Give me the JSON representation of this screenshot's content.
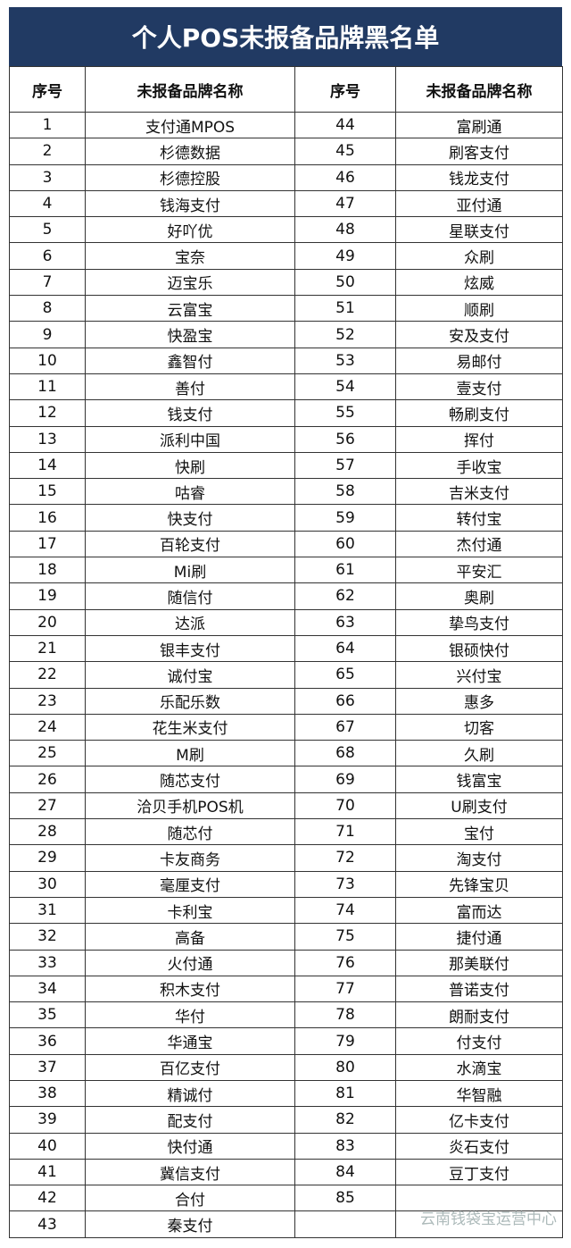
{
  "header": {
    "title": "个人POS未报备品牌黑名单"
  },
  "table": {
    "columns": [
      "序号",
      "未报备品牌名称",
      "序号",
      "未报备品牌名称"
    ],
    "rows": [
      [
        1,
        "支付通MPOS",
        44,
        "富刷通"
      ],
      [
        2,
        "杉德数据",
        45,
        "刷客支付"
      ],
      [
        3,
        "杉德控股",
        46,
        "钱龙支付"
      ],
      [
        4,
        "钱海支付",
        47,
        "亚付通"
      ],
      [
        5,
        "好吖优",
        48,
        "星联支付"
      ],
      [
        6,
        "宝奈",
        49,
        "众刷"
      ],
      [
        7,
        "迈宝乐",
        50,
        "炫威"
      ],
      [
        8,
        "云富宝",
        51,
        "顺刷"
      ],
      [
        9,
        "快盈宝",
        52,
        "安及支付"
      ],
      [
        10,
        "鑫智付",
        53,
        "易邮付"
      ],
      [
        11,
        "善付",
        54,
        "壹支付"
      ],
      [
        12,
        "钱支付",
        55,
        "畅刷支付"
      ],
      [
        13,
        "派利中国",
        56,
        "挥付"
      ],
      [
        14,
        "快刷",
        57,
        "手收宝"
      ],
      [
        15,
        "咕睿",
        58,
        "吉米支付"
      ],
      [
        16,
        "快支付",
        59,
        "转付宝"
      ],
      [
        17,
        "百轮支付",
        60,
        "杰付通"
      ],
      [
        18,
        "Mi刷",
        61,
        "平安汇"
      ],
      [
        19,
        "随信付",
        62,
        "奥刷"
      ],
      [
        20,
        "达派",
        63,
        "挚鸟支付"
      ],
      [
        21,
        "银丰支付",
        64,
        "银硕快付"
      ],
      [
        22,
        "诚付宝",
        65,
        "兴付宝"
      ],
      [
        23,
        "乐配乐数",
        66,
        "惠多"
      ],
      [
        24,
        "花生米支付",
        67,
        "切客"
      ],
      [
        25,
        "M刷",
        68,
        "久刷"
      ],
      [
        26,
        "随芯支付",
        69,
        "钱富宝"
      ],
      [
        27,
        "洽贝手机POS机",
        70,
        "U刷支付"
      ],
      [
        28,
        "随芯付",
        71,
        "宝付"
      ],
      [
        29,
        "卡友商务",
        72,
        "淘支付"
      ],
      [
        30,
        "毫厘支付",
        73,
        "先锋宝贝"
      ],
      [
        31,
        "卡利宝",
        74,
        "富而达"
      ],
      [
        32,
        "高备",
        75,
        "捷付通"
      ],
      [
        33,
        "火付通",
        76,
        "那美联付"
      ],
      [
        34,
        "积木支付",
        77,
        "普诺支付"
      ],
      [
        35,
        "华付",
        78,
        "朗耐支付"
      ],
      [
        36,
        "华通宝",
        79,
        "付支付"
      ],
      [
        37,
        "百亿支付",
        80,
        "水滴宝"
      ],
      [
        38,
        "精诚付",
        81,
        "华智融"
      ],
      [
        39,
        "配支付",
        82,
        "亿卡支付"
      ],
      [
        40,
        "快付通",
        83,
        "炎石支付"
      ],
      [
        41,
        "冀信支付",
        84,
        "豆丁支付"
      ],
      [
        42,
        "合付",
        85
      ],
      [
        43,
        "秦支付"
      ]
    ]
  },
  "watermark": "云南钱袋宝运营中心"
}
